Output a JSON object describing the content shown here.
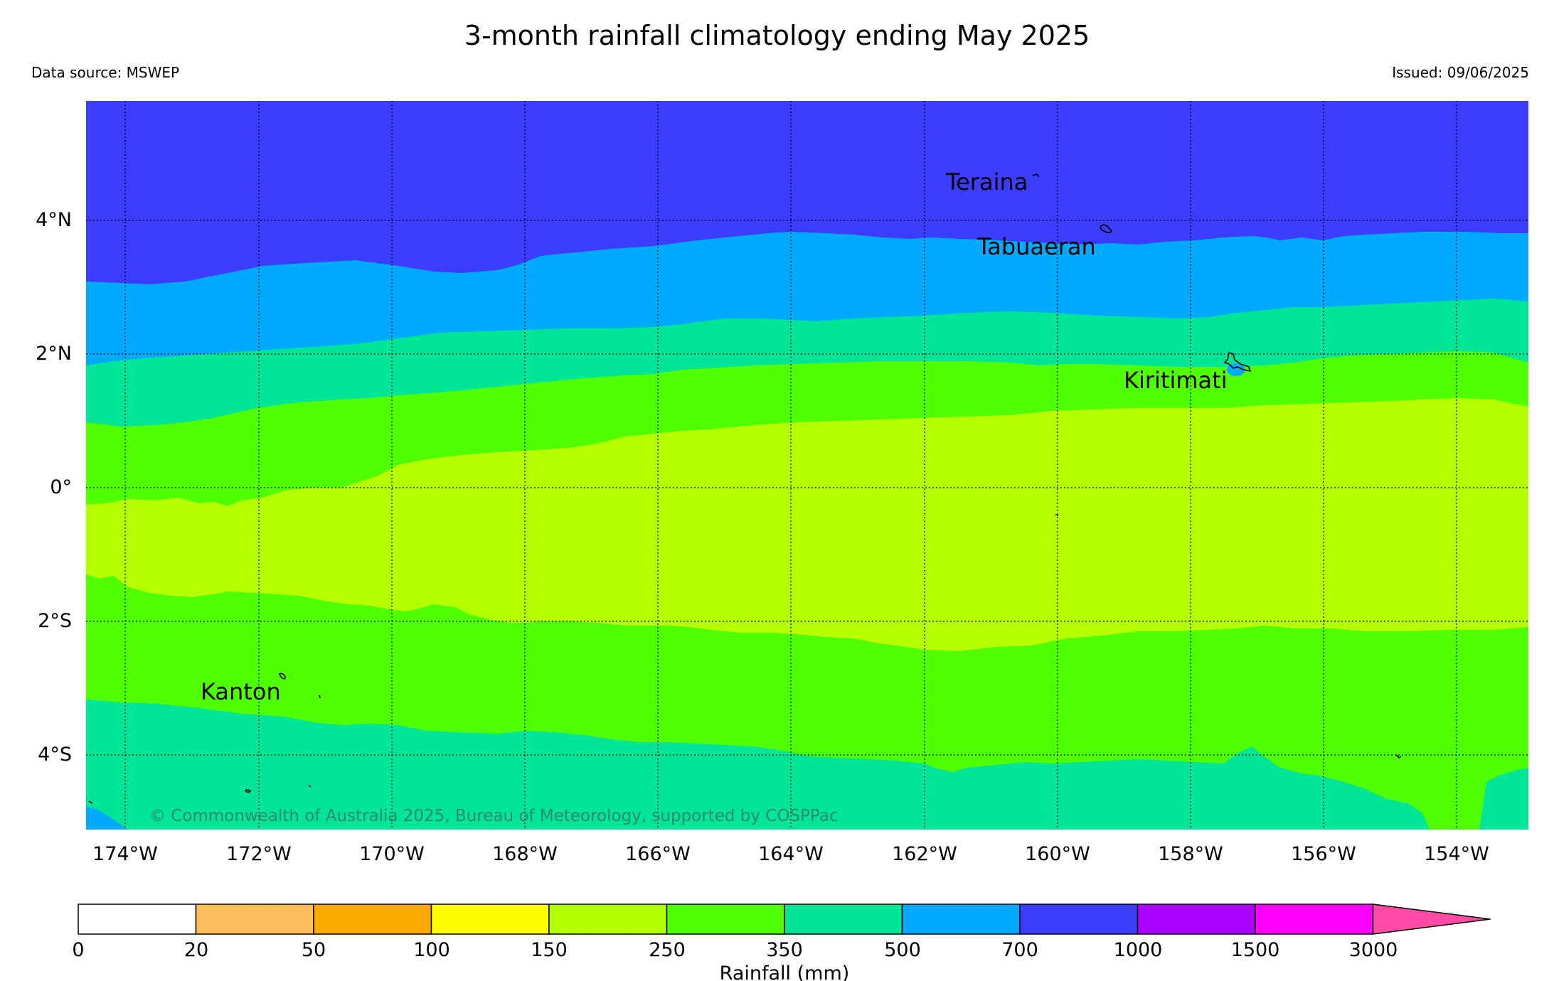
{
  "header": {
    "title": "3-month rainfall climatology ending May 2025",
    "data_source": "Data source: MSWEP",
    "issued": "Issued: 09/06/2025"
  },
  "map": {
    "copyright": "© Commonwealth of Australia 2025, Bureau of Meteorology, supported by COSPPac",
    "lon_range": [
      -174.6,
      -152.9
    ],
    "lat_range": [
      -5.1,
      5.8
    ],
    "lon_ticks": [
      -174,
      -172,
      -170,
      -168,
      -166,
      -164,
      -162,
      -160,
      -158,
      -156,
      -154
    ],
    "lon_tick_labels": [
      "174°W",
      "172°W",
      "170°W",
      "168°W",
      "166°W",
      "164°W",
      "162°W",
      "160°W",
      "158°W",
      "156°W",
      "154°W"
    ],
    "lat_ticks": [
      4,
      2,
      0,
      -2,
      -4
    ],
    "lat_tick_labels": [
      "4°N",
      "2°N",
      "0°",
      "2°S",
      "4°S"
    ],
    "places": [
      {
        "name": "Teraina",
        "lon": -160.4,
        "lat": 4.7
      },
      {
        "name": "Tabuaeran",
        "lon": -159.4,
        "lat": 3.9
      },
      {
        "name": "Kiritimati",
        "lon": -157.4,
        "lat": 1.9
      },
      {
        "name": "Kanton",
        "lon": -171.7,
        "lat": -2.8
      }
    ]
  },
  "legend": {
    "label": "Rainfall (mm)",
    "ticks": [
      "0",
      "20",
      "50",
      "100",
      "150",
      "250",
      "350",
      "500",
      "700",
      "1000",
      "1500",
      "3000"
    ],
    "colors": [
      "#ffffff",
      "#ffbe5a",
      "#ffaa00",
      "#ffff00",
      "#b4ff00",
      "#50ff00",
      "#00e696",
      "#00aaff",
      "#3c3cff",
      "#aa00ff",
      "#ff00ff",
      "#ff4ba5"
    ]
  },
  "colors": {
    "above_1000": "#3c3cff",
    "band_700_1000": "#00aaff",
    "band_500_700": "#00e696",
    "band_350_500": "#50ff00",
    "band_250_350": "#b4ff00"
  }
}
